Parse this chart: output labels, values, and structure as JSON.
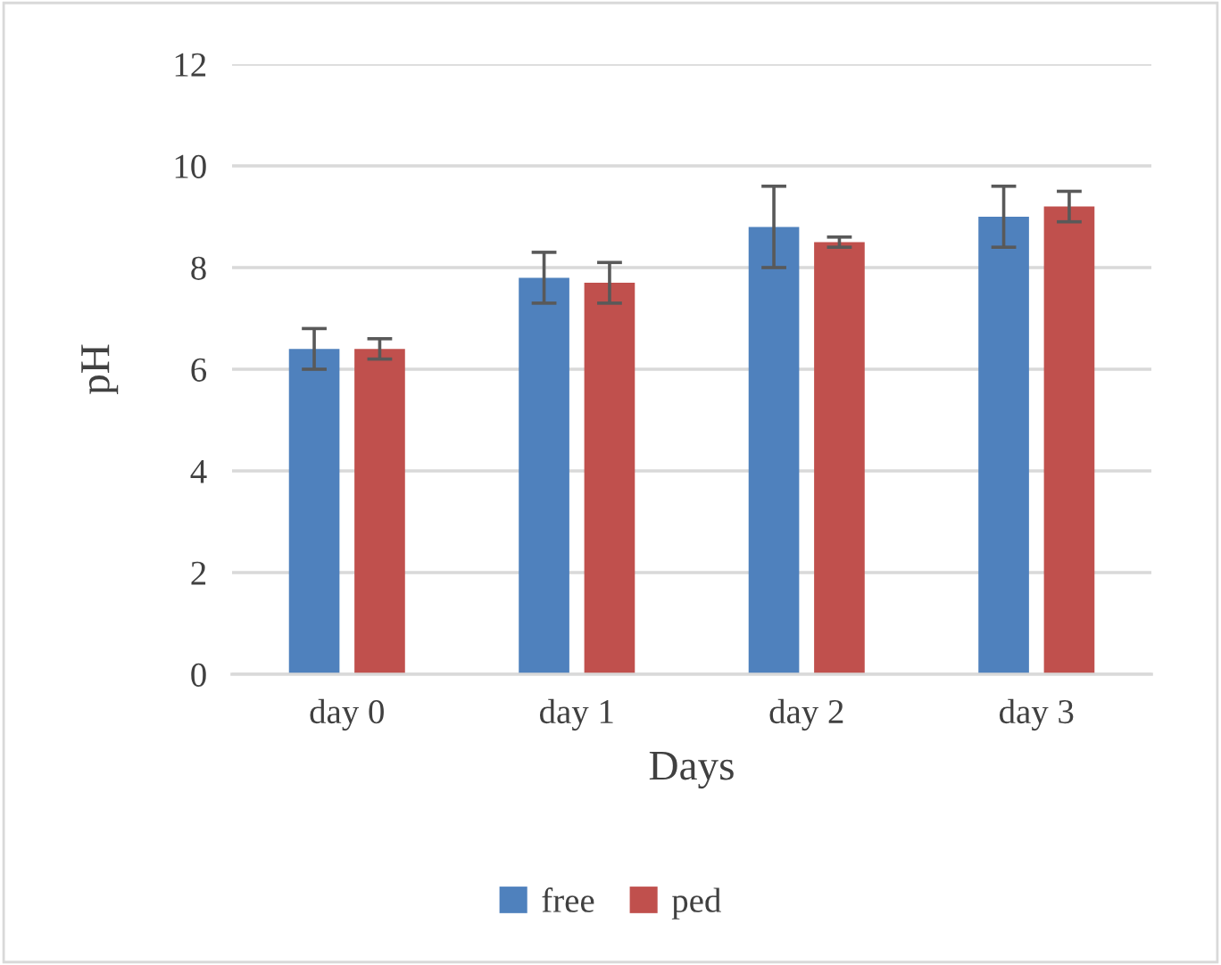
{
  "chart_data": {
    "type": "bar",
    "xlabel": "Days",
    "ylabel": "pH",
    "categories": [
      "day 0",
      "day 1",
      "day 2",
      "day 3"
    ],
    "series": [
      {
        "name": "free",
        "color": "#4f81bd",
        "values": [
          6.4,
          7.8,
          8.8,
          9.0
        ],
        "errors": [
          0.4,
          0.5,
          0.8,
          0.6
        ]
      },
      {
        "name": "ped",
        "color": "#c0504d",
        "values": [
          6.4,
          7.7,
          8.5,
          9.2
        ],
        "errors": [
          0.2,
          0.4,
          0.1,
          0.3
        ]
      }
    ],
    "ylim": [
      0,
      12
    ],
    "yticks": [
      0,
      2,
      4,
      6,
      8,
      10,
      12
    ],
    "grid": "y",
    "legend": "bottom"
  }
}
